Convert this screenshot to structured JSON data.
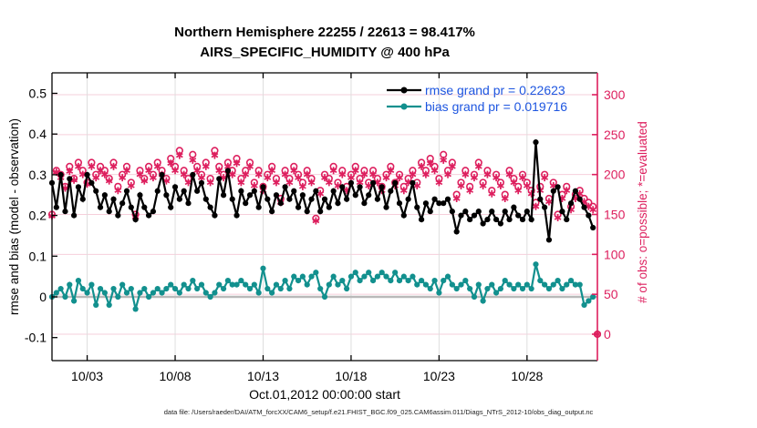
{
  "title": {
    "line1": "Northern Hemisphere 22255 / 22613 = 98.417%",
    "line2": "AIRS_SPECIFIC_HUMIDITY @ 400 hPa"
  },
  "legend": {
    "rmse_label": "rmse grand pr = 0.22623",
    "bias_label": "bias grand pr = 0.019716"
  },
  "axes": {
    "left": {
      "label": "rmse and bias (model - observation)",
      "ticks": [
        -0.1,
        0,
        0.1,
        0.2,
        0.3,
        0.4,
        0.5
      ]
    },
    "right": {
      "label": "# of obs: o=possible; *=evaluated",
      "ticks": [
        0,
        50,
        100,
        150,
        200,
        250,
        300
      ]
    },
    "x": {
      "label": "Oct.01,2012 00:00:00 start",
      "tick_labels": [
        "10/03",
        "10/08",
        "10/13",
        "10/18",
        "10/23",
        "10/28"
      ],
      "tick_days": [
        2,
        7,
        12,
        17,
        22,
        27
      ]
    }
  },
  "footer": {
    "data_file": "data file: /Users/raeder/DAI/ATM_forcXX/CAM6_setup/f.e21.FHIST_BGC.f09_025.CAM6assim.011/Diags_NTrS_2012-10/obs_diag_output.nc"
  },
  "colors": {
    "rmse": "#000000",
    "bias": "#12908e",
    "obs_count": "#dd1f5e",
    "legend_text": "#1e56e0",
    "grid_h": "#f6cfdb",
    "grid_v": "#dedede",
    "zero_line": "#b9b9b9"
  },
  "chart_data": {
    "type": "line",
    "title": "Northern Hemisphere 22255 / 22613 = 98.417% | AIRS_SPECIFIC_HUMIDITY @ 400 hPa",
    "xlabel": "Oct.01,2012 00:00:00 start",
    "ylabel_left": "rmse and bias (model - observation)",
    "ylabel_right": "# of obs: o=possible; *=evaluated",
    "left_ylim": [
      -0.157,
      0.55
    ],
    "right_ylim": [
      -30,
      327
    ],
    "grid": true,
    "legend_position": "top-right-inside",
    "x_days": {
      "start": 0,
      "step": 0.25,
      "count": 125
    },
    "series": [
      {
        "name": "rmse",
        "axis": "left",
        "marker": "dot",
        "grand_value": 0.22623,
        "values": [
          0.28,
          0.22,
          0.3,
          0.21,
          0.29,
          0.2,
          0.27,
          0.24,
          0.3,
          0.28,
          0.26,
          0.22,
          0.25,
          0.21,
          0.24,
          0.2,
          0.23,
          0.26,
          0.22,
          0.19,
          0.25,
          0.22,
          0.2,
          0.21,
          0.26,
          0.3,
          0.25,
          0.22,
          0.27,
          0.24,
          0.26,
          0.23,
          0.3,
          0.26,
          0.28,
          0.24,
          0.22,
          0.2,
          0.29,
          0.25,
          0.31,
          0.24,
          0.2,
          0.26,
          0.23,
          0.25,
          0.26,
          0.22,
          0.27,
          0.24,
          0.21,
          0.25,
          0.23,
          0.27,
          0.24,
          0.26,
          0.22,
          0.25,
          0.21,
          0.24,
          0.26,
          0.21,
          0.24,
          0.22,
          0.26,
          0.23,
          0.27,
          0.24,
          0.28,
          0.25,
          0.27,
          0.23,
          0.25,
          0.28,
          0.24,
          0.27,
          0.22,
          0.26,
          0.28,
          0.23,
          0.2,
          0.24,
          0.28,
          0.22,
          0.19,
          0.23,
          0.21,
          0.24,
          0.23,
          0.23,
          0.24,
          0.21,
          0.16,
          0.2,
          0.21,
          0.19,
          0.2,
          0.21,
          0.18,
          0.19,
          0.21,
          0.19,
          0.18,
          0.21,
          0.19,
          0.22,
          0.2,
          0.19,
          0.21,
          0.19,
          0.38,
          0.24,
          0.22,
          0.14,
          0.26,
          0.27,
          0.21,
          0.19,
          0.23,
          0.26,
          0.24,
          0.22,
          0.2,
          0.17,
          null
        ]
      },
      {
        "name": "bias",
        "axis": "left",
        "marker": "dot",
        "grand_value": 0.019716,
        "values": [
          0.0,
          0.01,
          0.02,
          0.0,
          0.03,
          -0.01,
          0.04,
          0.02,
          0.01,
          0.03,
          -0.02,
          0.02,
          0.01,
          -0.02,
          0.02,
          0.0,
          0.03,
          0.01,
          0.02,
          -0.03,
          0.01,
          0.02,
          0.0,
          0.01,
          0.02,
          0.01,
          0.02,
          0.03,
          0.02,
          0.01,
          0.03,
          0.02,
          0.04,
          0.02,
          0.03,
          0.01,
          0.0,
          0.01,
          0.03,
          0.02,
          0.04,
          0.03,
          0.03,
          0.04,
          0.03,
          0.02,
          0.03,
          0.01,
          0.07,
          0.02,
          0.01,
          0.03,
          0.02,
          0.04,
          0.02,
          0.05,
          0.04,
          0.05,
          0.03,
          0.05,
          0.06,
          0.02,
          0.0,
          0.03,
          0.05,
          0.03,
          0.04,
          0.02,
          0.05,
          0.06,
          0.04,
          0.05,
          0.06,
          0.04,
          0.05,
          0.06,
          0.05,
          0.04,
          0.06,
          0.04,
          0.05,
          0.04,
          0.05,
          0.03,
          0.04,
          0.03,
          0.02,
          0.04,
          0.01,
          0.04,
          0.05,
          0.03,
          0.02,
          0.03,
          0.04,
          0.02,
          0.0,
          0.03,
          -0.01,
          0.02,
          0.03,
          0.01,
          0.02,
          0.04,
          0.03,
          0.02,
          0.03,
          0.02,
          0.03,
          0.02,
          0.08,
          0.04,
          0.03,
          0.02,
          0.03,
          0.04,
          0.02,
          0.03,
          0.04,
          0.03,
          0.03,
          -0.02,
          -0.01,
          0.0,
          null
        ]
      },
      {
        "name": "possible_obs",
        "axis": "right",
        "marker": "o",
        "values": [
          150,
          205,
          200,
          185,
          210,
          195,
          215,
          205,
          190,
          215,
          200,
          210,
          205,
          195,
          215,
          185,
          200,
          210,
          190,
          150,
          205,
          195,
          210,
          200,
          215,
          205,
          195,
          220,
          210,
          230,
          205,
          195,
          225,
          210,
          200,
          215,
          195,
          230,
          210,
          200,
          215,
          205,
          220,
          195,
          205,
          215,
          190,
          205,
          185,
          200,
          210,
          195,
          170,
          205,
          195,
          210,
          200,
          190,
          205,
          195,
          145,
          180,
          200,
          195,
          210,
          190,
          205,
          185,
          200,
          210,
          195,
          205,
          190,
          205,
          195,
          185,
          200,
          210,
          190,
          200,
          185,
          195,
          205,
          190,
          215,
          205,
          220,
          210,
          195,
          225,
          205,
          215,
          175,
          190,
          205,
          185,
          200,
          215,
          190,
          205,
          180,
          200,
          190,
          175,
          205,
          195,
          185,
          200,
          190,
          180,
          165,
          185,
          200,
          170,
          190,
          150,
          175,
          185,
          160,
          175,
          180,
          170,
          165,
          160,
          0
        ]
      },
      {
        "name": "evaluated_obs",
        "axis": "right",
        "marker": "*",
        "values": [
          148,
          203,
          196,
          183,
          204,
          193,
          210,
          200,
          188,
          210,
          196,
          205,
          200,
          192,
          210,
          180,
          196,
          205,
          186,
          147,
          200,
          192,
          205,
          196,
          210,
          200,
          192,
          214,
          205,
          224,
          200,
          190,
          218,
          205,
          196,
          210,
          190,
          224,
          205,
          196,
          210,
          200,
          214,
          190,
          200,
          210,
          186,
          200,
          180,
          196,
          205,
          190,
          165,
          200,
          190,
          205,
          196,
          185,
          200,
          190,
          142,
          176,
          196,
          190,
          205,
          186,
          200,
          180,
          196,
          205,
          190,
          200,
          186,
          200,
          190,
          180,
          196,
          205,
          186,
          196,
          180,
          190,
          200,
          186,
          210,
          200,
          214,
          205,
          190,
          218,
          200,
          210,
          170,
          186,
          200,
          180,
          196,
          210,
          186,
          200,
          176,
          196,
          186,
          170,
          200,
          190,
          180,
          196,
          186,
          176,
          160,
          180,
          196,
          166,
          186,
          146,
          170,
          180,
          156,
          170,
          176,
          166,
          160,
          156,
          0
        ]
      }
    ]
  }
}
